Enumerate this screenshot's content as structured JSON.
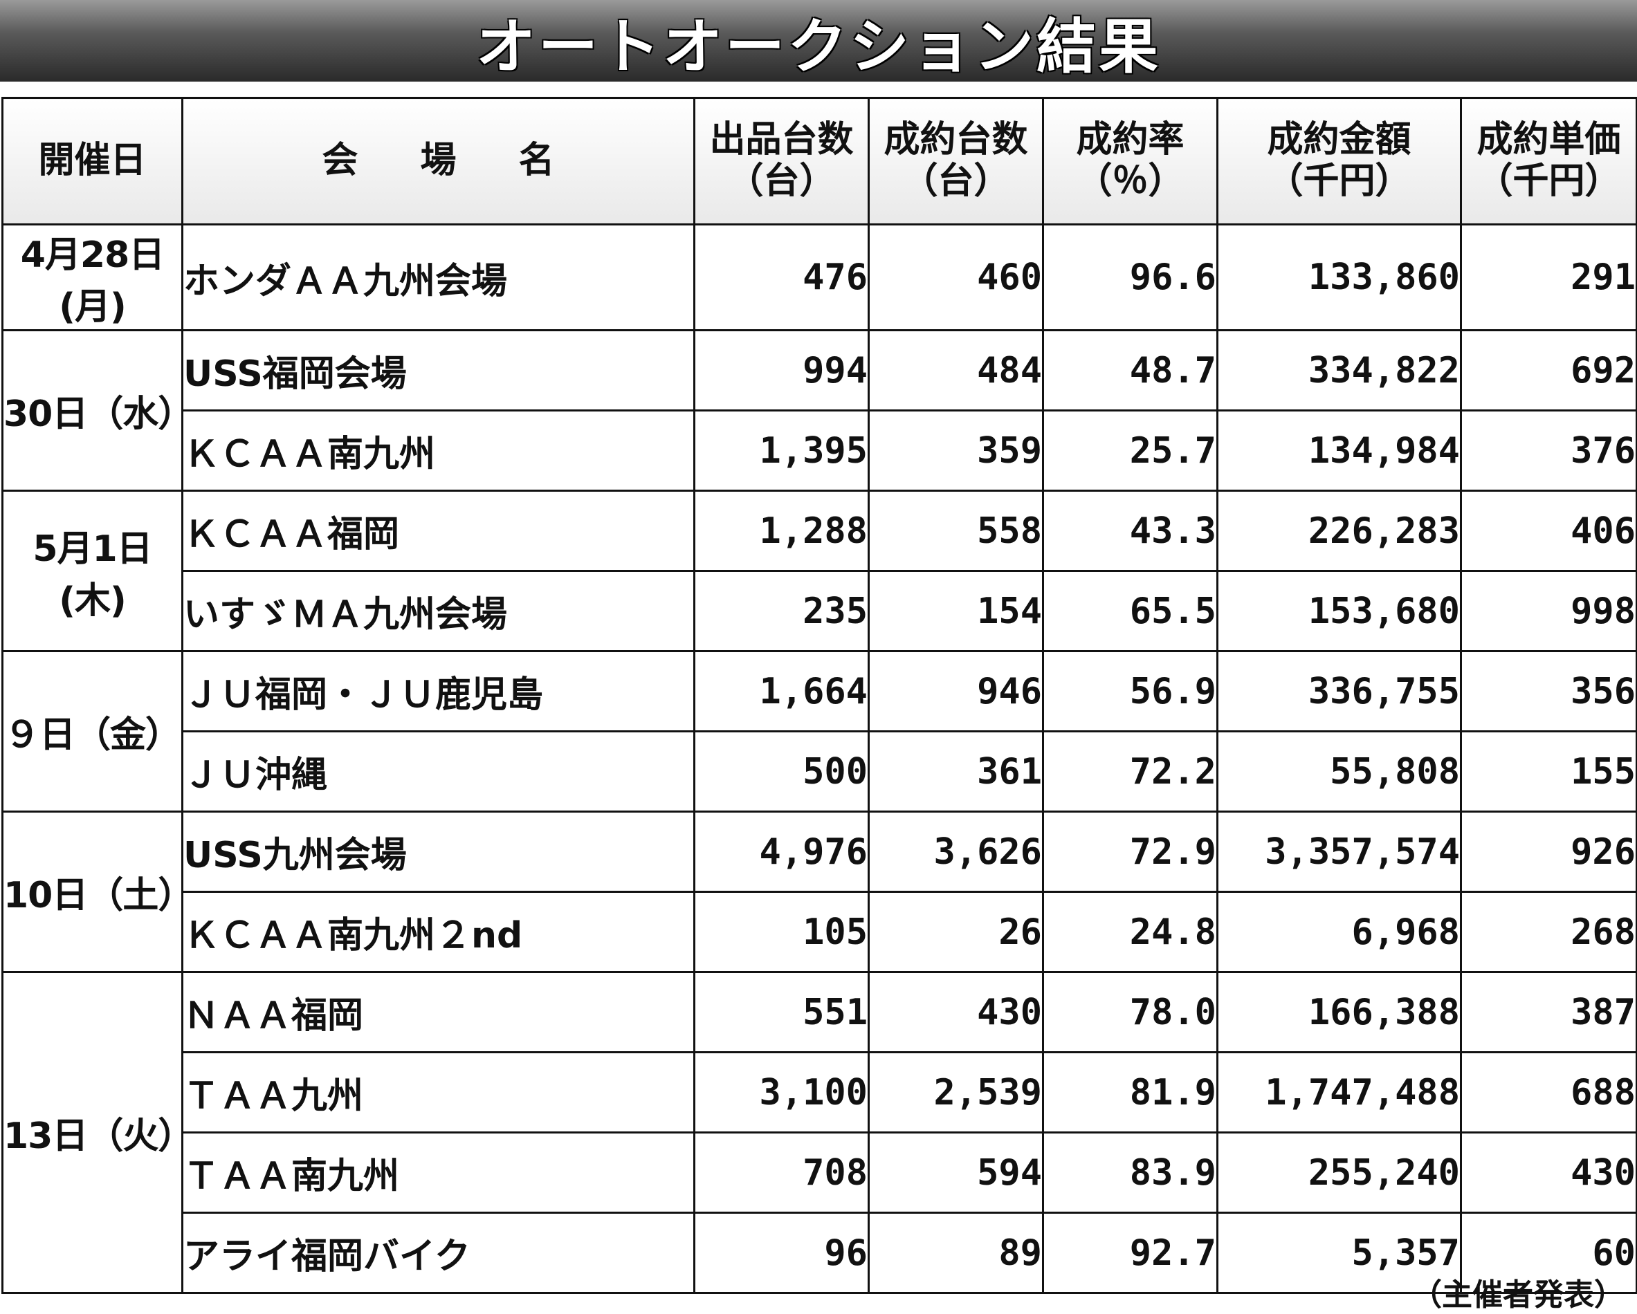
{
  "title": "オートオークション結果",
  "headers": {
    "date": "開催日",
    "venue": "会場名",
    "listed": [
      "出品台数",
      "（台）"
    ],
    "sold": [
      "成約台数",
      "（台）"
    ],
    "rate": [
      "成約率",
      "（％）"
    ],
    "amount": [
      "成約金額",
      "（千円）"
    ],
    "unit_price": [
      "成約単価",
      "（千円）"
    ]
  },
  "groups": [
    {
      "date": "4月28日(月)",
      "rows": [
        {
          "venue": "ホンダＡＡ九州会場",
          "listed": "476",
          "sold": "460",
          "rate": "96.6",
          "amount": "133,860",
          "unit_price": "291"
        }
      ]
    },
    {
      "date": "30日（水）",
      "rows": [
        {
          "venue": "USS福岡会場",
          "listed": "994",
          "sold": "484",
          "rate": "48.7",
          "amount": "334,822",
          "unit_price": "692"
        },
        {
          "venue": "ＫＣＡＡ南九州",
          "listed": "1,395",
          "sold": "359",
          "rate": "25.7",
          "amount": "134,984",
          "unit_price": "376"
        }
      ]
    },
    {
      "date": "5月1日(木)",
      "rows": [
        {
          "venue": "ＫＣＡＡ福岡",
          "listed": "1,288",
          "sold": "558",
          "rate": "43.3",
          "amount": "226,283",
          "unit_price": "406"
        },
        {
          "venue": "いすゞＭＡ九州会場",
          "listed": "235",
          "sold": "154",
          "rate": "65.5",
          "amount": "153,680",
          "unit_price": "998"
        }
      ]
    },
    {
      "date": "９日（金）",
      "rows": [
        {
          "venue": "ＪＵ福岡・ＪＵ鹿児島",
          "listed": "1,664",
          "sold": "946",
          "rate": "56.9",
          "amount": "336,755",
          "unit_price": "356"
        },
        {
          "venue": "ＪＵ沖縄",
          "listed": "500",
          "sold": "361",
          "rate": "72.2",
          "amount": "55,808",
          "unit_price": "155"
        }
      ]
    },
    {
      "date": "10日（土）",
      "rows": [
        {
          "venue": "USS九州会場",
          "listed": "4,976",
          "sold": "3,626",
          "rate": "72.9",
          "amount": "3,357,574",
          "unit_price": "926"
        },
        {
          "venue": "ＫＣＡＡ南九州２nd",
          "listed": "105",
          "sold": "26",
          "rate": "24.8",
          "amount": "6,968",
          "unit_price": "268"
        }
      ]
    },
    {
      "date": "13日（火）",
      "rows": [
        {
          "venue": "ＮＡＡ福岡",
          "listed": "551",
          "sold": "430",
          "rate": "78.0",
          "amount": "166,388",
          "unit_price": "387"
        },
        {
          "venue": "ＴＡＡ九州",
          "listed": "3,100",
          "sold": "2,539",
          "rate": "81.9",
          "amount": "1,747,488",
          "unit_price": "688"
        },
        {
          "venue": "ＴＡＡ南九州",
          "listed": "708",
          "sold": "594",
          "rate": "83.9",
          "amount": "255,240",
          "unit_price": "430"
        },
        {
          "venue": "アライ福岡バイク",
          "listed": "96",
          "sold": "89",
          "rate": "92.7",
          "amount": "5,357",
          "unit_price": "60"
        }
      ]
    }
  ],
  "footnote": "（主催者発表）"
}
